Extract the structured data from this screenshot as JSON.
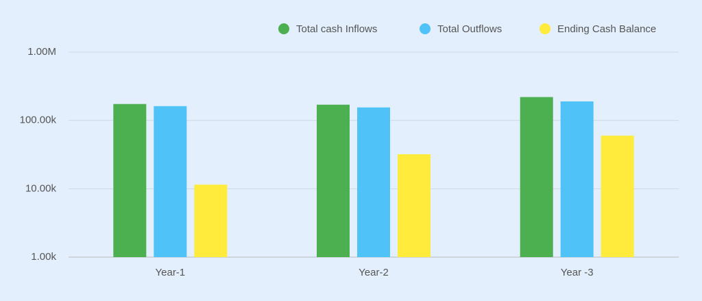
{
  "chart_data": {
    "type": "bar",
    "log_scale": true,
    "grid": true,
    "legend": "top-right",
    "categories": [
      "Year-1",
      "Year-2",
      "Year -3"
    ],
    "series": [
      {
        "name": "Total cash Inflows",
        "color": "#4caf50",
        "values": [
          174000,
          170000,
          220000
        ]
      },
      {
        "name": "Total Outflows",
        "color": "#4fc3f7",
        "values": [
          162000,
          155000,
          190000
        ]
      },
      {
        "name": "Ending Cash Balance",
        "color": "#ffeb3b",
        "values": [
          11500,
          32000,
          60000
        ]
      }
    ],
    "ylim": [
      1000,
      1000000
    ],
    "yticks": [
      {
        "value": 1000,
        "label": "1.00k"
      },
      {
        "value": 10000,
        "label": "10.00k"
      },
      {
        "value": 100000,
        "label": "100.00k"
      },
      {
        "value": 1000000,
        "label": "1.00M"
      }
    ]
  }
}
